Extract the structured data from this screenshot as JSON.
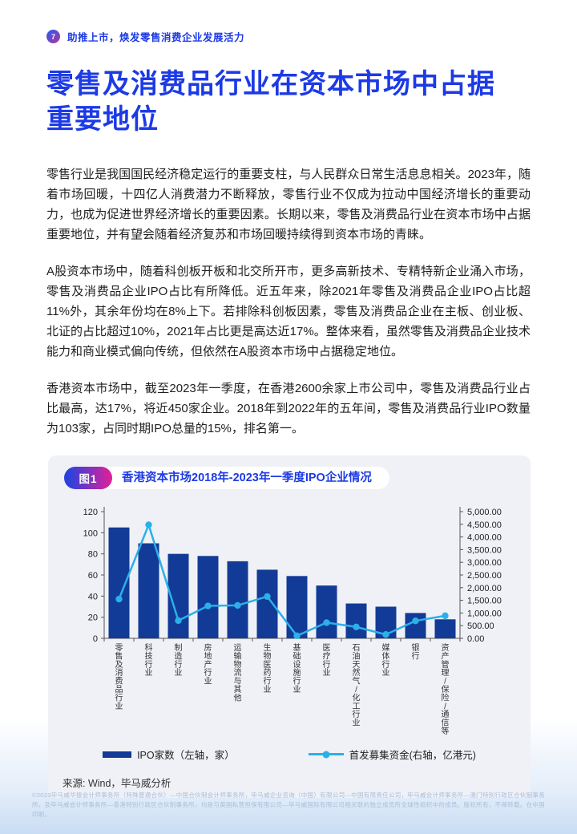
{
  "page": {
    "header": {
      "page_number": "7",
      "tagline": "助推上市，焕发零售消费企业发展活力"
    },
    "title_lines": {
      "line1": "零售及消费品行业在资本市场中占据",
      "line2": "重要地位"
    },
    "paragraphs": [
      "零售行业是我国国民经济稳定运行的重要支柱，与人民群众日常生活息息相关。2023年，随着市场回暖，十四亿人消费潜力不断释放，零售行业不仅成为拉动中国经济增长的重要动力，也成为促进世界经济增长的重要因素。长期以来，零售及消费品行业在资本市场中占据重要地位，并有望会随着经济复苏和市场回暖持续得到资本市场的青睐。",
      "A股资本市场中，随着科创板开板和北交所开市，更多高新技术、专精特新企业涌入市场，零售及消费品企业IPO占比有所降低。近五年来，除2021年零售及消费品企业IPO占比超11%外，其余年份均在8%上下。若排除科创板因素，零售及消费品企业在主板、创业板、北证的占比超过10%，2021年占比更是高达近17%。整体来看，虽然零售及消费品企业技术能力和商业模式偏向传统，但依然在A股资本市场中占据稳定地位。",
      "香港资本市场中，截至2023年一季度，在香港2600余家上市公司中，零售及消费品行业占比最高，达17%，将近450家企业。2018年到2022年的五年间，零售及消费品行业IPO数量为103家，占同时期IPO总量的15%，排名第一。"
    ],
    "footer": "©2023毕马威华振会计师事务所（特殊普通合伙）—中国合伙制会计师事务所，毕马威企业咨询（中国）有限公司—中国有限责任公司，毕马威会计师事务所—澳门特别行政区合伙制事务所，及毕马威会计师事务所—香港特别行政区合伙制事务所，均是与英国私营担保有限公司—毕马威国际有限公司相关联的独立成员所全球性组织中的成员。版权所有，不得转载。在中国印刷。"
  },
  "figure": {
    "badge": "图1",
    "title": "香港资本市场2018年-2023年一季度IPO企业情况",
    "source": "来源: Wind，毕马威分析"
  },
  "chart_data": {
    "type": "bar",
    "subtype": "combo bar+line, dual axis",
    "title": "香港资本市场2018年-2023年一季度IPO企业情况",
    "categories": [
      "零售及消费品行业",
      "科技行业",
      "制造行业",
      "房地产行业",
      "运输物流与其他",
      "生物医药行业",
      "基础设施行业",
      "医疗行业",
      "石油天然气/化工行业",
      "媒体行业",
      "银行",
      "资产管理/保险/通信等"
    ],
    "series": [
      {
        "name": "IPO家数（左轴，家）",
        "type": "bar",
        "axis": "left",
        "color": "#123a97",
        "values": [
          105,
          90,
          80,
          78,
          73,
          65,
          59,
          50,
          33,
          30,
          24,
          18
        ]
      },
      {
        "name": "首发募集资金(右轴，亿港元)",
        "type": "line",
        "axis": "right",
        "color": "#2bb0e8",
        "values": [
          1550,
          4480,
          700,
          1280,
          1300,
          1650,
          100,
          620,
          450,
          150,
          690,
          890
        ]
      }
    ],
    "left_axis": {
      "min": 0,
      "max": 120,
      "step": 20,
      "ticks": [
        "0",
        "20",
        "40",
        "60",
        "80",
        "100",
        "120"
      ]
    },
    "right_axis": {
      "min": 0,
      "max": 5000,
      "step": 500,
      "ticks": [
        "0.00",
        "500.00",
        "1,000.00",
        "1,500.00",
        "2,000.00",
        "2,500.00",
        "3,000.00",
        "3,500.00",
        "4,000.00",
        "4,500.00",
        "5,000.00"
      ]
    },
    "grid": false,
    "legend_position": "bottom"
  }
}
